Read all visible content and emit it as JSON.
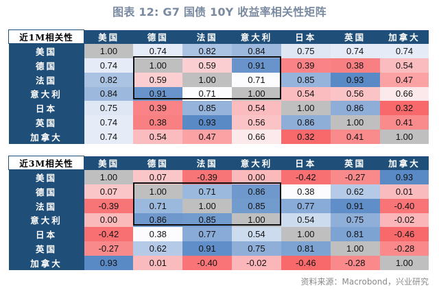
{
  "title": "图表 12: G7 国债 10Y 收益率相关性矩阵",
  "countries": [
    "美国",
    "德国",
    "法国",
    "意大利",
    "日本",
    "英国",
    "加拿大"
  ],
  "colors": {
    "header_bg": "#1f4e79",
    "diagonal": "#bfbfbf",
    "low": "#f8696b",
    "mid": "#fcfcff",
    "high": "#5a8ac6"
  },
  "tables": [
    {
      "corner_label": "近1M相关性",
      "midpoint": 0.71,
      "rows": [
        [
          "1.00",
          "0.74",
          "0.82",
          "0.84",
          "0.75",
          "0.74",
          "0.74"
        ],
        [
          "0.74",
          "1.00",
          "0.59",
          "0.91",
          "0.39",
          "0.38",
          "0.54"
        ],
        [
          "0.82",
          "0.59",
          "1.00",
          "0.71",
          "0.85",
          "0.93",
          "0.47"
        ],
        [
          "0.84",
          "0.91",
          "0.71",
          "1.00",
          "0.54",
          "0.56",
          "0.66"
        ],
        [
          "0.75",
          "0.39",
          "0.85",
          "0.54",
          "1.00",
          "0.86",
          "0.32"
        ],
        [
          "0.74",
          "0.38",
          "0.93",
          "0.56",
          "0.86",
          "1.00",
          "0.41"
        ],
        [
          "0.74",
          "0.54",
          "0.47",
          "0.66",
          "0.32",
          "0.41",
          "1.00"
        ]
      ]
    },
    {
      "corner_label": "近3M相关性",
      "midpoint": 0.38,
      "rows": [
        [
          "1.00",
          "0.07",
          "-0.39",
          "0.00",
          "-0.42",
          "-0.27",
          "0.93"
        ],
        [
          "0.07",
          "1.00",
          "0.71",
          "0.86",
          "0.38",
          "0.62",
          "0.01"
        ],
        [
          "-0.39",
          "0.71",
          "1.00",
          "0.85",
          "0.77",
          "0.91",
          "-0.40"
        ],
        [
          "0.00",
          "0.86",
          "0.85",
          "1.00",
          "0.54",
          "0.75",
          "-0.02"
        ],
        [
          "-0.42",
          "0.38",
          "0.77",
          "0.54",
          "1.00",
          "0.81",
          "-0.46"
        ],
        [
          "-0.27",
          "0.62",
          "0.91",
          "0.75",
          "0.81",
          "1.00",
          "-0.28"
        ],
        [
          "0.93",
          "0.01",
          "-0.40",
          "-0.02",
          "-0.46",
          "-0.28",
          "1.00"
        ]
      ]
    }
  ],
  "source": "资料来源：Macrobond，兴业研究"
}
